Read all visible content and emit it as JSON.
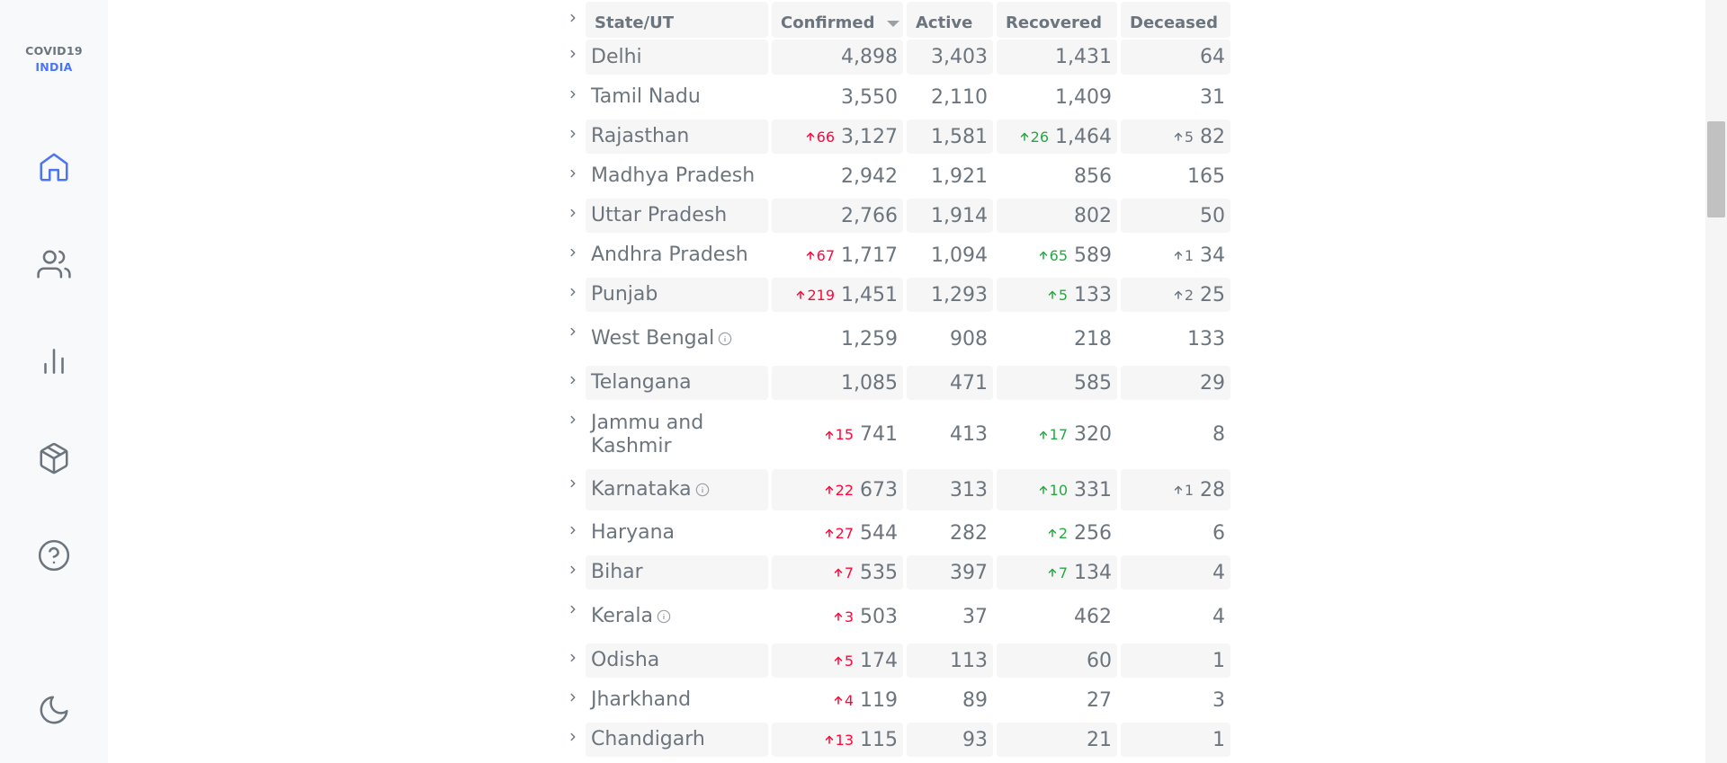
{
  "app": {
    "logo_line1": "COVID19",
    "logo_line2": "INDIA",
    "accent_color": "#4c75f2"
  },
  "nav": {
    "items": [
      {
        "icon": "home-icon",
        "active": true
      },
      {
        "icon": "users-icon",
        "active": false
      },
      {
        "icon": "bar-chart-icon",
        "active": false
      },
      {
        "icon": "package-icon",
        "active": false
      },
      {
        "icon": "help-circle-icon",
        "active": false
      }
    ],
    "theme_toggle": {
      "icon": "moon-icon"
    }
  },
  "table": {
    "headers": {
      "state": "State/UT",
      "confirmed": "Confirmed",
      "active": "Active",
      "recovered": "Recovered",
      "deceased": "Deceased"
    },
    "sort_indicator_icon": "sort-down-icon",
    "rows": [
      {
        "state": "Delhi",
        "info": false,
        "confirmed": "4,898",
        "confirmed_delta": "",
        "active": "3,403",
        "recovered": "1,431",
        "recovered_delta": "",
        "deceased": "64",
        "deceased_delta": ""
      },
      {
        "state": "Tamil Nadu",
        "info": false,
        "confirmed": "3,550",
        "confirmed_delta": "",
        "active": "2,110",
        "recovered": "1,409",
        "recovered_delta": "",
        "deceased": "31",
        "deceased_delta": ""
      },
      {
        "state": "Rajasthan",
        "info": false,
        "confirmed": "3,127",
        "confirmed_delta": "66",
        "active": "1,581",
        "recovered": "1,464",
        "recovered_delta": "26",
        "deceased": "82",
        "deceased_delta": "5"
      },
      {
        "state": "Madhya Pradesh",
        "info": false,
        "confirmed": "2,942",
        "confirmed_delta": "",
        "active": "1,921",
        "recovered": "856",
        "recovered_delta": "",
        "deceased": "165",
        "deceased_delta": ""
      },
      {
        "state": "Uttar Pradesh",
        "info": false,
        "confirmed": "2,766",
        "confirmed_delta": "",
        "active": "1,914",
        "recovered": "802",
        "recovered_delta": "",
        "deceased": "50",
        "deceased_delta": ""
      },
      {
        "state": "Andhra Pradesh",
        "info": false,
        "confirmed": "1,717",
        "confirmed_delta": "67",
        "active": "1,094",
        "recovered": "589",
        "recovered_delta": "65",
        "deceased": "34",
        "deceased_delta": "1"
      },
      {
        "state": "Punjab",
        "info": false,
        "confirmed": "1,451",
        "confirmed_delta": "219",
        "active": "1,293",
        "recovered": "133",
        "recovered_delta": "5",
        "deceased": "25",
        "deceased_delta": "2"
      },
      {
        "state": "West Bengal",
        "info": true,
        "confirmed": "1,259",
        "confirmed_delta": "",
        "active": "908",
        "recovered": "218",
        "recovered_delta": "",
        "deceased": "133",
        "deceased_delta": ""
      },
      {
        "state": "Telangana",
        "info": false,
        "confirmed": "1,085",
        "confirmed_delta": "",
        "active": "471",
        "recovered": "585",
        "recovered_delta": "",
        "deceased": "29",
        "deceased_delta": ""
      },
      {
        "state": "Jammu and Kashmir",
        "info": false,
        "confirmed": "741",
        "confirmed_delta": "15",
        "active": "413",
        "recovered": "320",
        "recovered_delta": "17",
        "deceased": "8",
        "deceased_delta": ""
      },
      {
        "state": "Karnataka",
        "info": true,
        "confirmed": "673",
        "confirmed_delta": "22",
        "active": "313",
        "recovered": "331",
        "recovered_delta": "10",
        "deceased": "28",
        "deceased_delta": "1"
      },
      {
        "state": "Haryana",
        "info": false,
        "confirmed": "544",
        "confirmed_delta": "27",
        "active": "282",
        "recovered": "256",
        "recovered_delta": "2",
        "deceased": "6",
        "deceased_delta": ""
      },
      {
        "state": "Bihar",
        "info": false,
        "confirmed": "535",
        "confirmed_delta": "7",
        "active": "397",
        "recovered": "134",
        "recovered_delta": "7",
        "deceased": "4",
        "deceased_delta": ""
      },
      {
        "state": "Kerala",
        "info": true,
        "confirmed": "503",
        "confirmed_delta": "3",
        "active": "37",
        "recovered": "462",
        "recovered_delta": "",
        "deceased": "4",
        "deceased_delta": ""
      },
      {
        "state": "Odisha",
        "info": false,
        "confirmed": "174",
        "confirmed_delta": "5",
        "active": "113",
        "recovered": "60",
        "recovered_delta": "",
        "deceased": "1",
        "deceased_delta": ""
      },
      {
        "state": "Jharkhand",
        "info": false,
        "confirmed": "119",
        "confirmed_delta": "4",
        "active": "89",
        "recovered": "27",
        "recovered_delta": "",
        "deceased": "3",
        "deceased_delta": ""
      },
      {
        "state": "Chandigarh",
        "info": false,
        "confirmed": "115",
        "confirmed_delta": "13",
        "active": "93",
        "recovered": "21",
        "recovered_delta": "",
        "deceased": "1",
        "deceased_delta": ""
      }
    ]
  },
  "colors": {
    "confirmed_delta": "#ff073a",
    "recovered_delta": "#28a745",
    "deceased_delta": "#6c757d",
    "text": "#6c757d",
    "row_shade": "#f6f6f7"
  }
}
